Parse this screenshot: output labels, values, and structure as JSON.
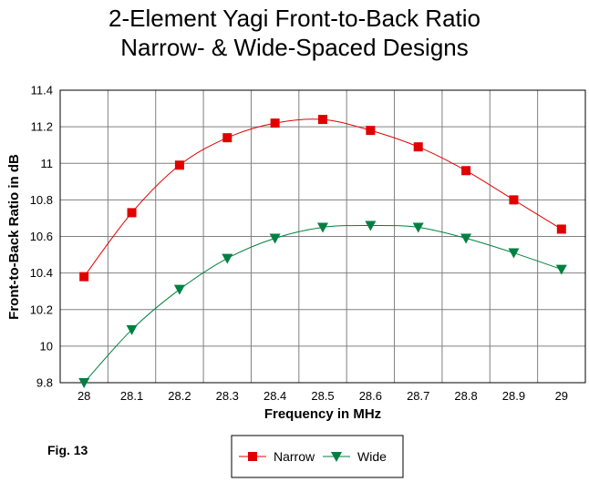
{
  "chart_data": {
    "type": "line",
    "title": "2-Element Yagi Front-to-Back Ratio",
    "subtitle": "Narrow- & Wide-Spaced Designs",
    "xlabel": "Frequency in MHz",
    "ylabel": "Front-to-Back Ratio in dB",
    "x": [
      28,
      28.1,
      28.2,
      28.3,
      28.4,
      28.5,
      28.6,
      28.7,
      28.8,
      28.9,
      29
    ],
    "x_ticks": [
      "28",
      "28.1",
      "28.2",
      "28.3",
      "28.4",
      "28.5",
      "28.6",
      "28.7",
      "28.8",
      "28.9",
      "29"
    ],
    "y_ticks": [
      "9.8",
      "10",
      "10.2",
      "10.4",
      "10.6",
      "10.8",
      "11",
      "11.2",
      "11.4"
    ],
    "ylim": [
      9.8,
      11.4
    ],
    "grid": true,
    "legend_position": "bottom-center",
    "series": [
      {
        "name": "Narrow",
        "color": "#e00000",
        "marker": "square",
        "values": [
          10.38,
          10.73,
          10.99,
          11.14,
          11.22,
          11.24,
          11.18,
          11.09,
          10.96,
          10.8,
          10.64
        ]
      },
      {
        "name": "Wide",
        "color": "#008040",
        "marker": "triangle-down",
        "values": [
          9.8,
          10.09,
          10.31,
          10.48,
          10.59,
          10.65,
          10.66,
          10.65,
          10.59,
          10.51,
          10.42
        ]
      }
    ]
  },
  "figure_label": "Fig. 13"
}
